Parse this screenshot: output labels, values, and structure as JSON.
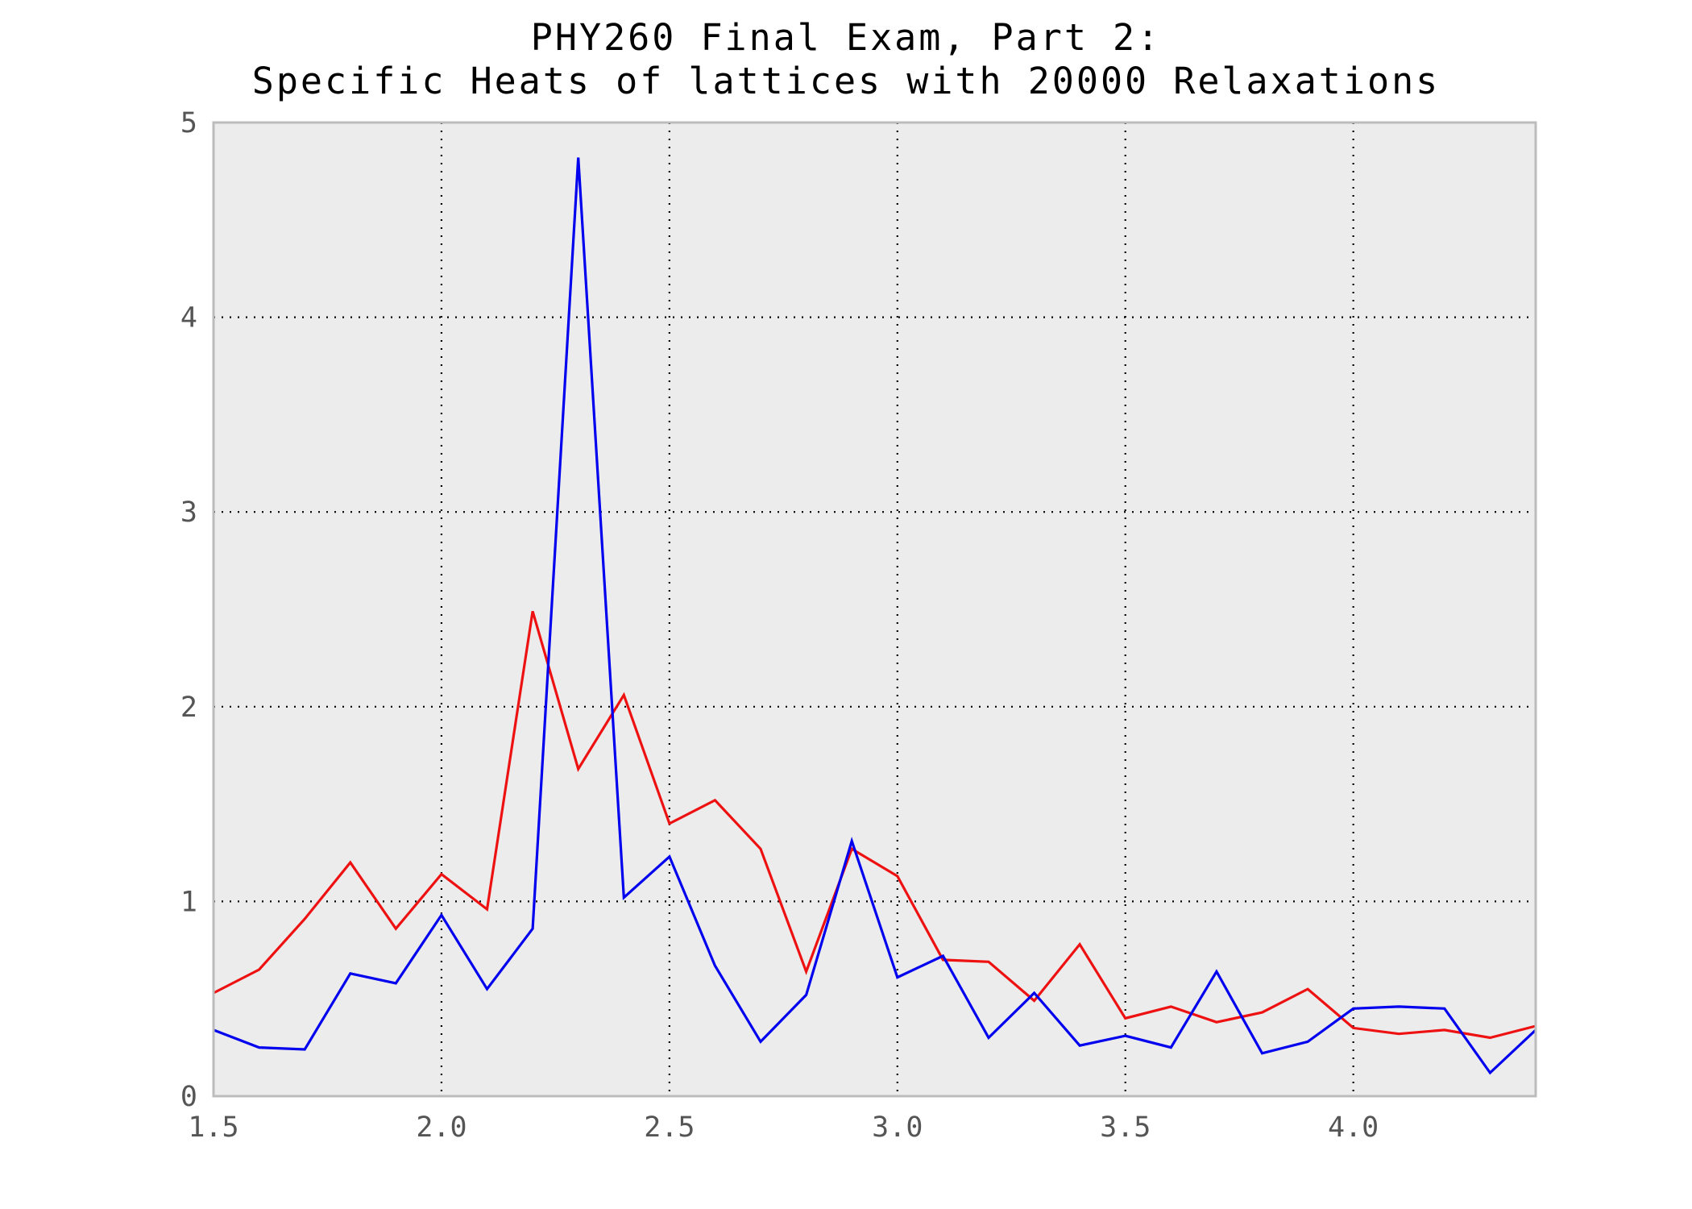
{
  "chart_data": {
    "type": "line",
    "title_lines": [
      "PHY260 Final Exam, Part 2:",
      "Specific Heats of lattices with 20000 Relaxations"
    ],
    "xlabel": "",
    "ylabel": "",
    "xlim": [
      1.5,
      4.4
    ],
    "ylim": [
      0,
      5
    ],
    "x_ticks": [
      "1.5",
      "2.0",
      "2.5",
      "3.0",
      "3.5",
      "4.0"
    ],
    "y_ticks": [
      "0",
      "1",
      "2",
      "3",
      "4",
      "5"
    ],
    "grid": true,
    "background_color": "#ececec",
    "x": [
      1.5,
      1.6,
      1.7,
      1.8,
      1.9,
      2.0,
      2.1,
      2.2,
      2.3,
      2.4,
      2.5,
      2.6,
      2.7,
      2.8,
      2.9,
      3.0,
      3.1,
      3.2,
      3.3,
      3.4,
      3.5,
      3.6,
      3.7,
      3.8,
      3.9,
      4.0,
      4.1,
      4.2,
      4.3,
      4.4
    ],
    "series": [
      {
        "color": "#ee1111",
        "values": [
          0.53,
          0.65,
          0.91,
          1.2,
          0.86,
          1.14,
          0.96,
          2.49,
          1.68,
          2.06,
          1.4,
          1.52,
          1.27,
          0.64,
          1.27,
          1.13,
          0.7,
          0.69,
          0.49,
          0.78,
          0.4,
          0.46,
          0.38,
          0.43,
          0.55,
          0.35,
          0.32,
          0.34,
          0.3,
          0.36
        ]
      },
      {
        "color": "#0000ee",
        "values": [
          0.34,
          0.25,
          0.24,
          0.63,
          0.58,
          0.93,
          0.55,
          0.86,
          4.82,
          1.02,
          1.23,
          0.67,
          0.28,
          0.52,
          1.31,
          0.61,
          0.72,
          0.3,
          0.53,
          0.26,
          0.31,
          0.25,
          0.64,
          0.22,
          0.28,
          0.45,
          0.46,
          0.45,
          0.12,
          0.34
        ]
      }
    ]
  }
}
